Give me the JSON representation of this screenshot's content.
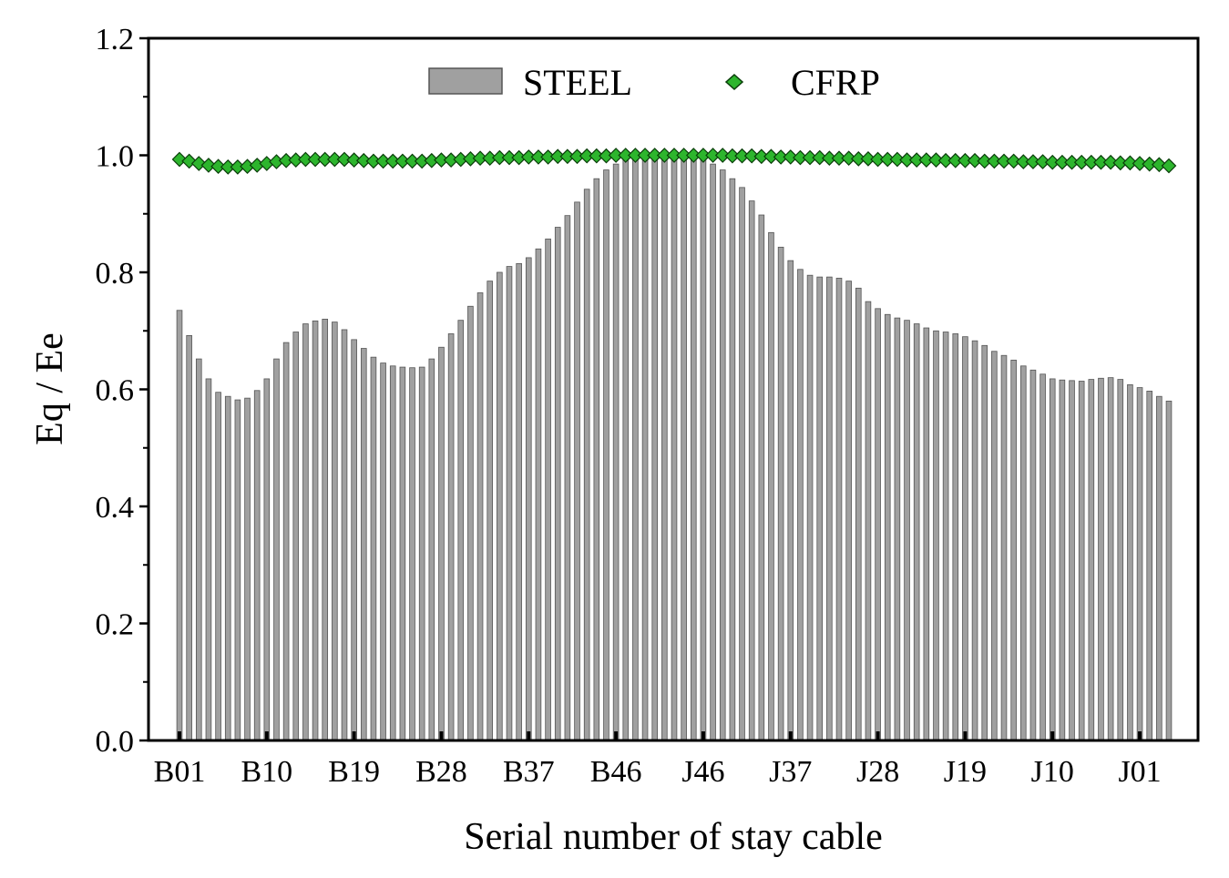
{
  "chart_data": {
    "type": "bar",
    "title": "",
    "xlabel": "Serial number of stay cable",
    "ylabel": "Eq / Ee",
    "ylim": [
      0,
      1.2
    ],
    "yticks": [
      "0.0",
      "0.2",
      "0.4",
      "0.6",
      "0.8",
      "1.0",
      "1.2"
    ],
    "tick_labels": [
      "B01",
      "B10",
      "B19",
      "B28",
      "B37",
      "B46",
      "J46",
      "J37",
      "J28",
      "J19",
      "J10",
      "J01"
    ],
    "tick_every": 9,
    "legend_position": "top-center",
    "colors": {
      "steel": "#a0a0a0",
      "steel_edge": "#555555",
      "cfrp": "#2db52d",
      "cfrp_edge": "#0a3d0a",
      "axis": "#000000"
    },
    "series": [
      {
        "name": "STEEL",
        "kind": "bar",
        "values": [
          0.735,
          0.692,
          0.652,
          0.618,
          0.595,
          0.588,
          0.582,
          0.585,
          0.598,
          0.618,
          0.652,
          0.68,
          0.698,
          0.712,
          0.717,
          0.72,
          0.715,
          0.702,
          0.685,
          0.67,
          0.655,
          0.645,
          0.64,
          0.638,
          0.637,
          0.638,
          0.652,
          0.672,
          0.695,
          0.718,
          0.742,
          0.765,
          0.785,
          0.8,
          0.81,
          0.815,
          0.825,
          0.84,
          0.857,
          0.877,
          0.897,
          0.92,
          0.942,
          0.96,
          0.975,
          0.985,
          0.992,
          0.996,
          0.998,
          0.999,
          1.0,
          0.999,
          0.998,
          0.996,
          0.992,
          0.985,
          0.975,
          0.96,
          0.945,
          0.922,
          0.898,
          0.868,
          0.843,
          0.82,
          0.805,
          0.795,
          0.792,
          0.792,
          0.79,
          0.785,
          0.773,
          0.75,
          0.738,
          0.728,
          0.722,
          0.718,
          0.712,
          0.705,
          0.7,
          0.698,
          0.695,
          0.69,
          0.683,
          0.675,
          0.665,
          0.658,
          0.65,
          0.64,
          0.633,
          0.626,
          0.618,
          0.616,
          0.615,
          0.614,
          0.617,
          0.619,
          0.62,
          0.617,
          0.608,
          0.603,
          0.597,
          0.588,
          0.58
        ]
      },
      {
        "name": "CFRP",
        "kind": "marker",
        "values": [
          0.993,
          0.99,
          0.986,
          0.983,
          0.981,
          0.98,
          0.98,
          0.981,
          0.983,
          0.986,
          0.989,
          0.991,
          0.992,
          0.993,
          0.993,
          0.993,
          0.993,
          0.993,
          0.992,
          0.991,
          0.99,
          0.99,
          0.99,
          0.99,
          0.99,
          0.99,
          0.991,
          0.992,
          0.992,
          0.993,
          0.994,
          0.995,
          0.995,
          0.996,
          0.996,
          0.996,
          0.997,
          0.997,
          0.997,
          0.998,
          0.998,
          0.998,
          0.999,
          0.999,
          0.999,
          1.0,
          1.0,
          1.0,
          1.0,
          1.0,
          1.0,
          1.0,
          1.0,
          1.0,
          1.0,
          1.0,
          1.0,
          0.999,
          0.999,
          0.999,
          0.998,
          0.998,
          0.997,
          0.997,
          0.996,
          0.996,
          0.996,
          0.995,
          0.995,
          0.995,
          0.994,
          0.994,
          0.993,
          0.993,
          0.993,
          0.992,
          0.992,
          0.992,
          0.992,
          0.991,
          0.991,
          0.991,
          0.991,
          0.99,
          0.99,
          0.99,
          0.99,
          0.989,
          0.989,
          0.989,
          0.988,
          0.988,
          0.988,
          0.988,
          0.988,
          0.988,
          0.988,
          0.987,
          0.987,
          0.986,
          0.985,
          0.984,
          0.982
        ]
      }
    ]
  }
}
